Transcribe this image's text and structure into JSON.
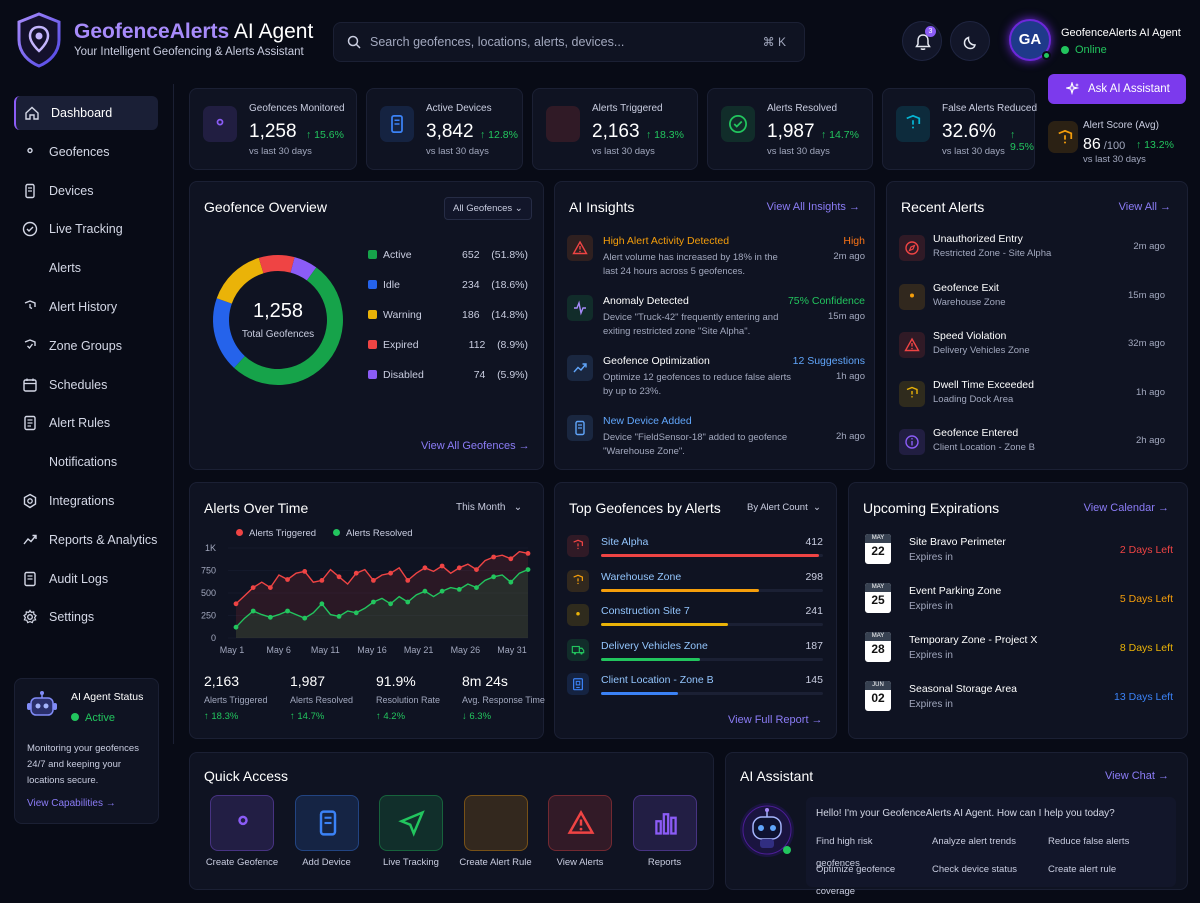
{
  "header": {
    "brand_main": "GeofenceAlerts",
    "brand_suffix": "AI Agent",
    "tagline": "Your Intelligent Geofencing & Alerts Assistant",
    "search_placeholder": "Search geofences, locations, alerts, devices...",
    "search_shortcut": "⌘ K",
    "notification_count": "3",
    "avatar_initials": "GA",
    "user_name": "GeofenceAlerts AI Agent",
    "user_status": "Online",
    "ask_button": "Ask AI Assistant"
  },
  "sidebar": {
    "items": [
      {
        "label": "Dashboard",
        "icon": "home-icon"
      },
      {
        "label": "Geofences",
        "icon": "location-pin-icon"
      },
      {
        "label": "Devices",
        "icon": "device-icon"
      },
      {
        "label": "Live Tracking",
        "icon": "tracking-icon"
      },
      {
        "label": "Alerts",
        "icon": "bell-icon"
      },
      {
        "label": "Alert History",
        "icon": "history-icon"
      },
      {
        "label": "Zone Groups",
        "icon": "zone-icon"
      },
      {
        "label": "Schedules",
        "icon": "calendar-icon"
      },
      {
        "label": "Alert Rules",
        "icon": "rules-icon"
      },
      {
        "label": "Notifications",
        "icon": "notification-icon"
      },
      {
        "label": "Integrations",
        "icon": "integration-icon"
      },
      {
        "label": "Reports & Analytics",
        "icon": "analytics-icon"
      },
      {
        "label": "Audit Logs",
        "icon": "audit-icon"
      },
      {
        "label": "Settings",
        "icon": "gear-icon"
      }
    ],
    "agent": {
      "title": "AI Agent Status",
      "status": "Active",
      "description": "Monitoring your geofences 24/7 and keeping your locations secure.",
      "link": "View Capabilities"
    }
  },
  "stats": [
    {
      "label": "Geofences Monitored",
      "value": "1,258",
      "change": "15.6%",
      "sub": "vs last 30 days",
      "color": "#8b5cf6"
    },
    {
      "label": "Active Devices",
      "value": "3,842",
      "change": "12.8%",
      "sub": "vs last 30 days",
      "color": "#3b82f6"
    },
    {
      "label": "Alerts Triggered",
      "value": "2,163",
      "change": "18.3%",
      "sub": "vs last 30 days",
      "color": "#ef4444"
    },
    {
      "label": "Alerts Resolved",
      "value": "1,987",
      "change": "14.7%",
      "sub": "vs last 30 days",
      "color": "#22c55e"
    },
    {
      "label": "False Alerts Reduced",
      "value": "32.6%",
      "change": "9.5%",
      "sub": "vs last 30 days",
      "color": "#06b6d4"
    },
    {
      "label": "Alert Score (Avg)",
      "value": "86",
      "value_suffix": "/100",
      "change": "13.2%",
      "sub": "vs last 30 days",
      "color": "#f59e0b"
    }
  ],
  "geofence_overview": {
    "title": "Geofence Overview",
    "filter": "All Geofences",
    "total_value": "1,258",
    "total_label": "Total Geofences",
    "link": "View All Geofences",
    "legend": [
      {
        "label": "Active",
        "value": "652",
        "pct": "(51.8%)",
        "color": "#16a34a"
      },
      {
        "label": "Idle",
        "value": "234",
        "pct": "(18.6%)",
        "color": "#2563eb"
      },
      {
        "label": "Warning",
        "value": "186",
        "pct": "(14.8%)",
        "color": "#eab308"
      },
      {
        "label": "Expired",
        "value": "112",
        "pct": "(8.9%)",
        "color": "#ef4444"
      },
      {
        "label": "Disabled",
        "value": "74",
        "pct": "(5.9%)",
        "color": "#8b5cf6"
      }
    ]
  },
  "ai_insights": {
    "title": "AI Insights",
    "link": "View All Insights",
    "items": [
      {
        "title": "High Alert Activity Detected",
        "tag": "High",
        "desc": "Alert volume has increased by 18% in the last 24 hours across 5 geofences.",
        "time": "2m ago",
        "title_color": "#f59e0b",
        "tag_color": "#f97316",
        "icon": "warning-icon"
      },
      {
        "title": "Anomaly Detected",
        "tag": "75% Confidence",
        "desc": "Device \"Truck-42\" frequently entering and exiting restricted zone \"Site Alpha\".",
        "time": "15m ago",
        "title_color": "#ffffff",
        "tag_color": "#22c55e",
        "icon": "anomaly-icon"
      },
      {
        "title": "Geofence Optimization",
        "tag": "12 Suggestions",
        "desc": "Optimize 12 geofences to reduce false alerts by up to 23%.",
        "time": "1h ago",
        "title_color": "#ffffff",
        "tag_color": "#60a5fa",
        "icon": "trend-icon"
      },
      {
        "title": "New Device Added",
        "tag": "",
        "desc": "Device \"FieldSensor-18\" added to geofence \"Warehouse Zone\".",
        "time": "2h ago",
        "title_color": "#60a5fa",
        "tag_color": "#60a5fa",
        "icon": "device-icon"
      }
    ]
  },
  "recent_alerts": {
    "title": "Recent Alerts",
    "link": "View All",
    "items": [
      {
        "title": "Unauthorized Entry",
        "sub": "Restricted Zone - Site Alpha",
        "time": "2m ago",
        "color": "#ef4444",
        "icon": "compass-icon"
      },
      {
        "title": "Geofence Exit",
        "sub": "Warehouse Zone",
        "time": "15m ago",
        "color": "#f59e0b",
        "icon": "pin-icon"
      },
      {
        "title": "Speed Violation",
        "sub": "Delivery Vehicles Zone",
        "time": "32m ago",
        "color": "#ef4444",
        "icon": "warning-icon"
      },
      {
        "title": "Dwell Time Exceeded",
        "sub": "Loading Dock Area",
        "time": "1h ago",
        "color": "#eab308",
        "icon": "shield-icon"
      },
      {
        "title": "Geofence Entered",
        "sub": "Client Location - Zone B",
        "time": "2h ago",
        "color": "#8b5cf6",
        "icon": "info-icon"
      }
    ]
  },
  "alerts_over_time": {
    "title": "Alerts Over Time",
    "filter": "This Month",
    "summary": [
      {
        "value": "2,163",
        "label": "Alerts Triggered",
        "change": "↑ 18.3%",
        "color": "#22c55e"
      },
      {
        "value": "1,987",
        "label": "Alerts Resolved",
        "change": "↑ 14.7%",
        "color": "#22c55e"
      },
      {
        "value": "91.9%",
        "label": "Resolution Rate",
        "change": "↑ 4.2%",
        "color": "#22c55e"
      },
      {
        "value": "8m 24s",
        "label": "Avg. Response Time",
        "change": "↓ 6.3%",
        "color": "#22c55e"
      }
    ]
  },
  "chart_data": {
    "type": "line",
    "x_ticks": [
      "May 1",
      "May 6",
      "May 11",
      "May 16",
      "May 21",
      "May 26",
      "May 31"
    ],
    "y_ticks": [
      "1K",
      "750",
      "500",
      "250",
      "0"
    ],
    "ylim": [
      0,
      1000
    ],
    "series": [
      {
        "name": "Alerts Triggered",
        "color": "#ef4444",
        "values": [
          380,
          470,
          560,
          620,
          560,
          700,
          650,
          720,
          740,
          620,
          640,
          760,
          680,
          600,
          720,
          760,
          640,
          700,
          720,
          780,
          640,
          720,
          780,
          740,
          800,
          720,
          780,
          820,
          760,
          860,
          900,
          920,
          880,
          960,
          940
        ]
      },
      {
        "name": "Alerts Resolved",
        "color": "#22c55e",
        "values": [
          120,
          220,
          300,
          260,
          230,
          260,
          300,
          260,
          220,
          280,
          380,
          260,
          240,
          300,
          280,
          330,
          400,
          440,
          380,
          460,
          400,
          480,
          520,
          460,
          520,
          560,
          540,
          600,
          560,
          640,
          680,
          700,
          620,
          720,
          760
        ]
      }
    ]
  },
  "top_geofences": {
    "title": "Top Geofences by Alerts",
    "filter": "By Alert Count",
    "link": "View Full Report",
    "items": [
      {
        "name": "Site Alpha",
        "value": 412,
        "color": "#ef4444",
        "icon": "shield-icon"
      },
      {
        "name": "Warehouse Zone",
        "value": 298,
        "color": "#f59e0b",
        "icon": "shield-icon"
      },
      {
        "name": "Construction Site 7",
        "value": 241,
        "color": "#eab308",
        "icon": "pin-icon"
      },
      {
        "name": "Delivery Vehicles Zone",
        "value": 187,
        "color": "#22c55e",
        "icon": "truck-icon"
      },
      {
        "name": "Client Location - Zone B",
        "value": 145,
        "color": "#3b82f6",
        "icon": "building-icon"
      }
    ],
    "max": 420
  },
  "upcoming_expirations": {
    "title": "Upcoming Expirations",
    "link": "View Calendar",
    "items": [
      {
        "month": "MAY",
        "day": "22",
        "name": "Site Bravo Perimeter",
        "sub": "Expires in",
        "days": "2 Days Left",
        "color": "#ef4444"
      },
      {
        "month": "MAY",
        "day": "25",
        "name": "Event Parking Zone",
        "sub": "Expires in",
        "days": "5 Days Left",
        "color": "#f59e0b"
      },
      {
        "month": "MAY",
        "day": "28",
        "name": "Temporary Zone - Project X",
        "sub": "Expires in",
        "days": "8 Days Left",
        "color": "#eab308"
      },
      {
        "month": "JUN",
        "day": "02",
        "name": "Seasonal Storage Area",
        "sub": "Expires in",
        "days": "13 Days Left",
        "color": "#3b82f6"
      }
    ]
  },
  "quick_access": {
    "title": "Quick Access",
    "items": [
      {
        "label": "Create Geofence",
        "color": "#8b5cf6",
        "icon": "location-pin-icon"
      },
      {
        "label": "Add Device",
        "color": "#3b82f6",
        "icon": "device-icon"
      },
      {
        "label": "Live Tracking",
        "color": "#22c55e",
        "icon": "navigation-icon"
      },
      {
        "label": "Create Alert Rule",
        "color": "#f59e0b",
        "icon": "bell-icon"
      },
      {
        "label": "View Alerts",
        "color": "#ef4444",
        "icon": "warning-icon"
      },
      {
        "label": "Reports",
        "color": "#8b5cf6",
        "icon": "bar-chart-icon"
      }
    ]
  },
  "ai_assistant": {
    "title": "AI Assistant",
    "link": "View Chat",
    "greeting": "Hello! I'm your GeofenceAlerts AI Agent. How can I help you today?",
    "chips": [
      "Find high risk geofences",
      "Analyze alert trends",
      "Reduce false alerts",
      "Optimize geofence coverage",
      "Check device status",
      "Create alert rule"
    ]
  }
}
